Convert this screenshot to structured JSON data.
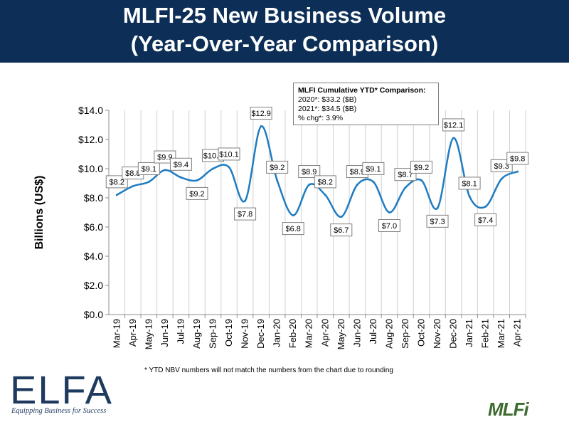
{
  "header": {
    "title_line1": "MLFI-25 New Business Volume",
    "title_line2": "(Year-Over-Year Comparison)"
  },
  "callout": {
    "title": "MLFI Cumulative YTD* Comparison:",
    "line1": "2020*: $33.2 ($B)",
    "line2": "2021*: $34.5 ($B)",
    "line3": "% chg*:  3.9%"
  },
  "footnote": "*  YTD NBV numbers will not match the numbers from the chart due to rounding",
  "logos": {
    "elfa_text": "ELFA",
    "elfa_tagline": "Equipping Business for Success",
    "mlfi_text": "MLFi"
  },
  "colors": {
    "banner": "#0d2f57",
    "line": "#1f7cc1",
    "elfa": "#1f3a5f",
    "mlfi": "#3e6b2f"
  },
  "chart_data": {
    "type": "line",
    "title": "",
    "xlabel": "",
    "ylabel": "Billions (US$)",
    "ylim": [
      0,
      14
    ],
    "yticks": [
      0,
      2,
      4,
      6,
      8,
      10,
      12,
      14
    ],
    "ytick_labels": [
      "$0.0",
      "$2.0",
      "$4.0",
      "$6.0",
      "$8.0",
      "$10.0",
      "$12.0",
      "$14.0"
    ],
    "grid": "vertical",
    "categories": [
      "Mar-19",
      "Apr-19",
      "May-19",
      "Jun-19",
      "Jul-19",
      "Aug-19",
      "Sep-19",
      "Oct-19",
      "Nov-19",
      "Dec-19",
      "Jan-20",
      "Feb-20",
      "Mar-20",
      "Apr-20",
      "May-20",
      "Jun-20",
      "Jul-20",
      "Aug-20",
      "Sep-20",
      "Oct-20",
      "Nov-20",
      "Dec-20",
      "Jan-21",
      "Feb-21",
      "Mar-21",
      "Apr-21"
    ],
    "values": [
      8.2,
      8.8,
      9.1,
      9.9,
      9.4,
      9.2,
      10.0,
      10.1,
      7.8,
      12.9,
      9.2,
      6.8,
      8.9,
      8.2,
      6.7,
      8.9,
      9.1,
      7.0,
      8.7,
      9.2,
      7.3,
      12.1,
      8.1,
      7.4,
      9.3,
      9.8
    ],
    "data_labels": [
      "$8.2",
      "$8.8",
      "$9.1",
      "$9.9",
      "$9.4",
      "$9.2",
      "$10.0",
      "$10.1",
      "$7.8",
      "$12.9",
      "$9.2",
      "$6.8",
      "$8.9",
      "$8.2",
      "$6.7",
      "$8.9",
      "$9.1",
      "$7.0",
      "$8.7",
      "$9.2",
      "$7.3",
      "$12.1",
      "$8.1",
      "$7.4",
      "$9.3",
      "$9.8"
    ]
  }
}
